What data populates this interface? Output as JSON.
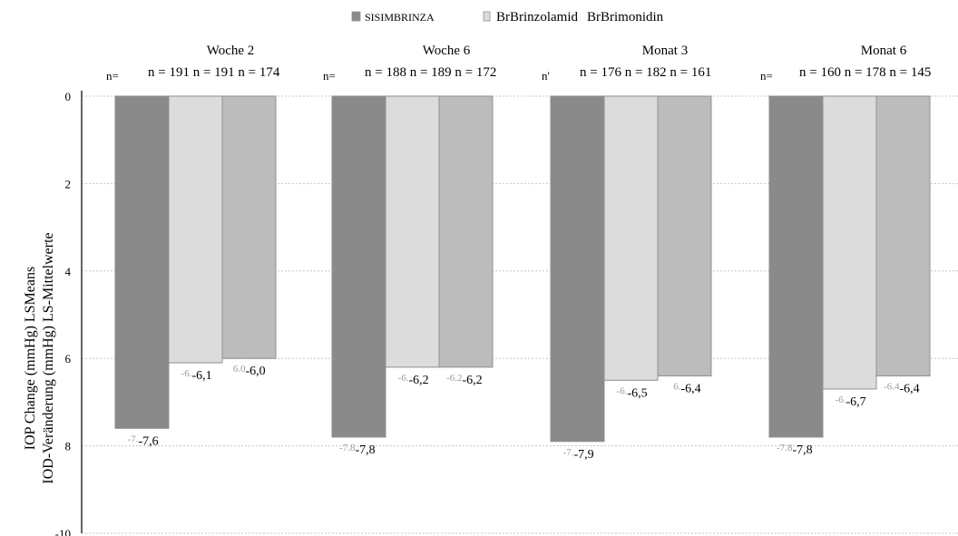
{
  "colors": {
    "simbrinza": "#8a8a8a",
    "brinzolamid": "#dcdcdc",
    "brimonidin": "#bcbcbc",
    "grid": "#c4c4c4",
    "axis": "#333333",
    "bar_edge": "#8f8f8f"
  },
  "chart_data": {
    "type": "bar",
    "title": "",
    "ylabel": "IOP Change (mmHg) LSMeans",
    "ylabel_de": "IOD-Veränderung (mmHg) LS-Mittelwerte",
    "xlabel": "",
    "ylim": [
      -10,
      0
    ],
    "yticks": [
      0,
      -2,
      -4,
      -6,
      -8,
      -10
    ],
    "ytick_labels": [
      "0",
      "2",
      "4",
      "6",
      "8",
      "-10"
    ],
    "grid": true,
    "legend_position": "top",
    "categories": [
      "Woche 2",
      "Woche 6",
      "Monat 3",
      "Monat 6"
    ],
    "series": [
      {
        "name": "SIMBRINZA",
        "legend_text": "SISIMBRINZA",
        "color_key": "simbrinza",
        "values": [
          -7.6,
          -7.8,
          -7.9,
          -7.8
        ],
        "labels": [
          "-7,6",
          "-7,8",
          "-7,9",
          "-7,8"
        ],
        "label_ghosts": [
          "-7.",
          "-7.8",
          "-7.",
          "-7.8"
        ]
      },
      {
        "name": "Brinzolamid",
        "legend_text": "BrBrinzolamid",
        "color_key": "brinzolamid",
        "values": [
          -6.1,
          -6.2,
          -6.5,
          -6.7
        ],
        "labels": [
          "-6,1",
          "-6,2",
          "-6,5",
          "-6,7"
        ],
        "label_ghosts": [
          "-6.",
          "-6.",
          "-6.",
          "-6."
        ]
      },
      {
        "name": "Brimonidin",
        "legend_text": "BrBrimonidin",
        "color_key": "brimonidin",
        "values": [
          -6.0,
          -6.2,
          -6.4,
          -6.4
        ],
        "labels": [
          "-6,0",
          "-6,2",
          "-6,4",
          "-6,4"
        ],
        "label_ghosts": [
          "6.0",
          "-6.2",
          "6.",
          "-6.4"
        ]
      }
    ],
    "n_rows": [
      {
        "prefix": "n=",
        "text": "n = 191 n = 191 n = 174"
      },
      {
        "prefix": "n=",
        "text": "n = 188 n = 189 n = 172"
      },
      {
        "prefix": "n'",
        "text": "n = 176 n = 182 n = 161"
      },
      {
        "prefix": "n=",
        "text": "n = 160 n = 178 n = 145"
      }
    ]
  }
}
